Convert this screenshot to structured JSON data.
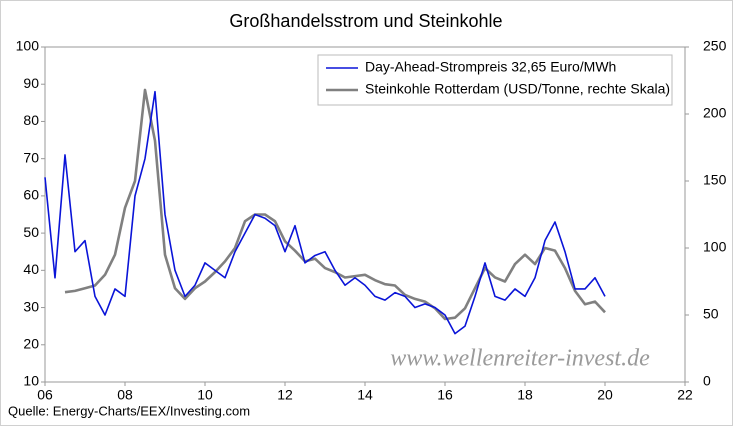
{
  "chart_data": {
    "type": "line",
    "title": "Großhandelsstrom und Steinkohle",
    "source": "Quelle: Energy-Charts/EEX/Investing.com",
    "watermark": "www.wellenreiter-invest.de",
    "x": [
      2006,
      2006.25,
      2006.5,
      2006.75,
      2007,
      2007.25,
      2007.5,
      2007.75,
      2008,
      2008.25,
      2008.5,
      2008.75,
      2009,
      2009.25,
      2009.5,
      2009.75,
      2010,
      2010.25,
      2010.5,
      2010.75,
      2011,
      2011.25,
      2011.5,
      2011.75,
      2012,
      2012.25,
      2012.5,
      2012.75,
      2013,
      2013.25,
      2013.5,
      2013.75,
      2014,
      2014.25,
      2014.5,
      2014.75,
      2015,
      2015.25,
      2015.5,
      2015.75,
      2016,
      2016.25,
      2016.5,
      2016.75,
      2017,
      2017.25,
      2017.5,
      2017.75,
      2018,
      2018.25,
      2018.5,
      2018.75,
      2019,
      2019.25,
      2019.5,
      2019.75,
      2020
    ],
    "series": [
      {
        "name": "Day-Ahead-Strompreis 32,65 Euro/MWh",
        "color": "#0a14d8",
        "width": 1.6,
        "values": [
          65,
          38,
          71,
          45,
          48,
          33,
          28,
          35,
          33,
          60,
          70,
          88,
          55,
          40,
          33,
          36,
          42,
          40,
          38,
          45,
          50,
          55,
          54,
          52,
          45,
          52,
          42,
          44,
          45,
          40,
          36,
          38,
          36,
          33,
          32,
          34,
          33,
          30,
          31,
          30,
          28,
          23,
          25,
          33,
          42,
          33,
          32,
          35,
          33,
          38,
          48,
          53,
          45,
          35,
          35,
          38,
          33
        ]
      },
      {
        "name": "Steinkohle Rotterdam (USD/Tonne, rechte Skala)",
        "color": "#808080",
        "width": 2.6,
        "axis": "y2",
        "values": [
          null,
          null,
          67,
          68,
          70,
          72,
          80,
          95,
          130,
          150,
          218,
          180,
          95,
          70,
          62,
          70,
          75,
          82,
          90,
          100,
          120,
          125,
          125,
          120,
          105,
          98,
          90,
          92,
          85,
          82,
          78,
          79,
          80,
          76,
          73,
          72,
          65,
          62,
          60,
          55,
          47,
          48,
          55,
          70,
          85,
          78,
          75,
          88,
          95,
          88,
          100,
          98,
          85,
          68,
          58,
          60,
          52
        ]
      }
    ],
    "xlim": [
      2006,
      2022
    ],
    "xticks": [
      {
        "value": 2006,
        "label": "06"
      },
      {
        "value": 2008,
        "label": "08"
      },
      {
        "value": 2010,
        "label": "10"
      },
      {
        "value": 2012,
        "label": "12"
      },
      {
        "value": 2014,
        "label": "14"
      },
      {
        "value": 2016,
        "label": "16"
      },
      {
        "value": 2018,
        "label": "18"
      },
      {
        "value": 2020,
        "label": "20"
      },
      {
        "value": 2022,
        "label": "22"
      }
    ],
    "ylim": [
      10,
      100
    ],
    "yticks": [
      10,
      20,
      30,
      40,
      50,
      60,
      70,
      80,
      90,
      100
    ],
    "y2lim": [
      0,
      250
    ],
    "y2ticks": [
      0,
      50,
      100,
      150,
      200,
      250
    ],
    "grid": false,
    "legend": "upper-right"
  }
}
